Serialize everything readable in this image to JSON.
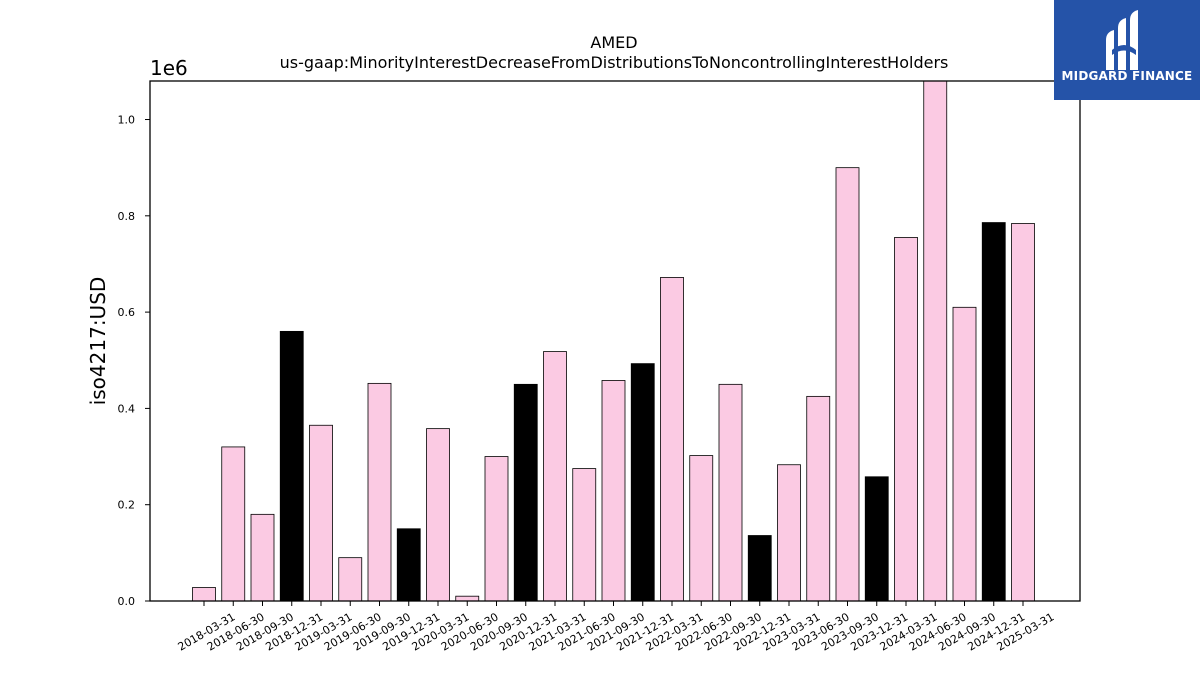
{
  "brand": {
    "name": "MIDGARD FINANCE",
    "bg_color": "#2553a8",
    "icon": "midgard-m-logo-icon"
  },
  "chart_data": {
    "type": "bar",
    "title": "AMED",
    "subtitle": "us-gaap:MinorityInterestDecreaseFromDistributionsToNoncontrollingInterestHolders",
    "ylabel": "iso4217:USD",
    "xlabel": "",
    "y_offset_label": "1e6",
    "ylim": [
      0,
      1080000
    ],
    "yticks": [
      0.0,
      0.2,
      0.4,
      0.6,
      0.8,
      1.0
    ],
    "ytick_labels": [
      "0.0",
      "0.2",
      "0.4",
      "0.6",
      "0.8",
      "1.0"
    ],
    "grid": false,
    "colors": {
      "default": "#fbcae3",
      "q4": "#000000",
      "edge": "#000000"
    },
    "categories": [
      "2018-03-31",
      "2018-06-30",
      "2018-09-30",
      "2018-12-31",
      "2019-03-31",
      "2019-06-30",
      "2019-09-30",
      "2019-12-31",
      "2020-03-31",
      "2020-06-30",
      "2020-09-30",
      "2020-12-31",
      "2021-03-31",
      "2021-06-30",
      "2021-09-30",
      "2021-12-31",
      "2022-03-31",
      "2022-06-30",
      "2022-09-30",
      "2022-12-31",
      "2023-03-31",
      "2023-06-30",
      "2023-09-30",
      "2023-12-31",
      "2024-03-31",
      "2024-06-30",
      "2024-09-30",
      "2024-12-31",
      "2025-03-31"
    ],
    "values": [
      28000,
      320000,
      180000,
      560000,
      365000,
      90000,
      452000,
      150000,
      358000,
      10000,
      300000,
      450000,
      518000,
      275000,
      458000,
      493000,
      672000,
      302000,
      450000,
      136000,
      283000,
      425000,
      900000,
      258000,
      755000,
      1085000,
      610000,
      786000,
      784000
    ]
  }
}
